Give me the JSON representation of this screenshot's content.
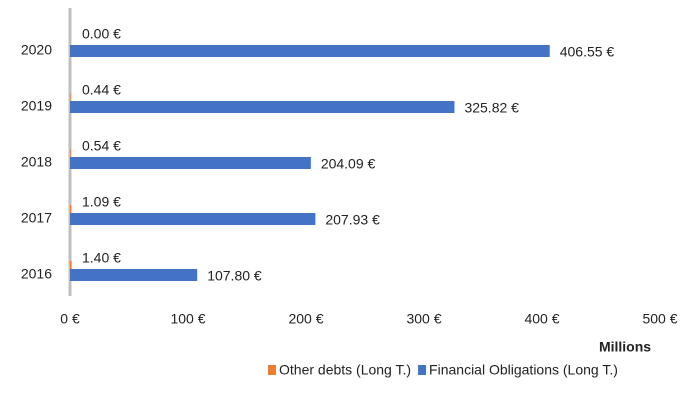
{
  "chart_data": {
    "type": "hbar",
    "categories": [
      "2016",
      "2017",
      "2018",
      "2019",
      "2020"
    ],
    "series": [
      {
        "name": "Other debts (Long T.)",
        "color": "#ed7d31",
        "values": [
          1.4,
          1.09,
          0.54,
          0.44,
          0.0
        ],
        "value_labels": [
          "1.40 €",
          "1.09 €",
          "0.54 €",
          "0.44 €",
          "0.00 €"
        ]
      },
      {
        "name": "Financial Obligations (Long T.)",
        "color": "#4472c4",
        "values": [
          107.8,
          207.93,
          204.09,
          325.82,
          406.55
        ],
        "value_labels": [
          "107.80 €",
          "207.93 €",
          "204.09 €",
          "325.82 €",
          "406.55 €"
        ]
      }
    ],
    "xlabel": "Millions",
    "xlim": [
      0,
      500
    ],
    "xticks": [
      {
        "value": 0,
        "label": "0 €"
      },
      {
        "value": 100,
        "label": "100 €"
      },
      {
        "value": 200,
        "label": "200 €"
      },
      {
        "value": 300,
        "label": "300 €"
      },
      {
        "value": 400,
        "label": "400 €"
      },
      {
        "value": 500,
        "label": "500 €"
      }
    ],
    "grid": false,
    "legend": "bottom"
  }
}
